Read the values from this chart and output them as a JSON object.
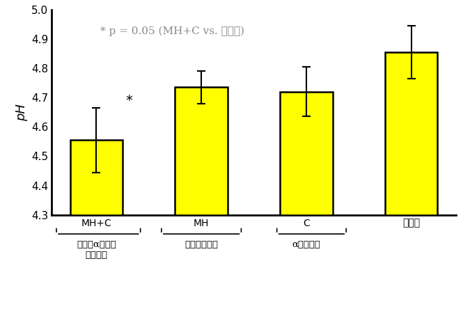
{
  "categories": [
    "MH+C",
    "MH",
    "C",
    "水のみ"
  ],
  "values": [
    4.555,
    4.735,
    4.72,
    4.855
  ],
  "errors": [
    0.11,
    0.055,
    0.085,
    0.09
  ],
  "bar_color": "#FFFF00",
  "bar_edge_color": "#000000",
  "bar_width": 0.5,
  "ylim": [
    4.3,
    5.0
  ],
  "yticks": [
    4.3,
    4.4,
    4.5,
    4.6,
    4.7,
    4.8,
    4.9,
    5.0
  ],
  "ylabel": "pH",
  "annotation_text": "* p = 0.05 (MH+C vs. 水のみ)",
  "star_label": "*",
  "sub_labels": [
    "マヌカαオリゴ\nパウダー",
    "マヌカハニー",
    "αオリゴ糖"
  ],
  "background_color": "#ffffff",
  "annotation_fontsize": 11,
  "ylabel_fontsize": 13,
  "tick_fontsize": 11,
  "category_fontsize": 12,
  "sub_fontsize": 9.5
}
